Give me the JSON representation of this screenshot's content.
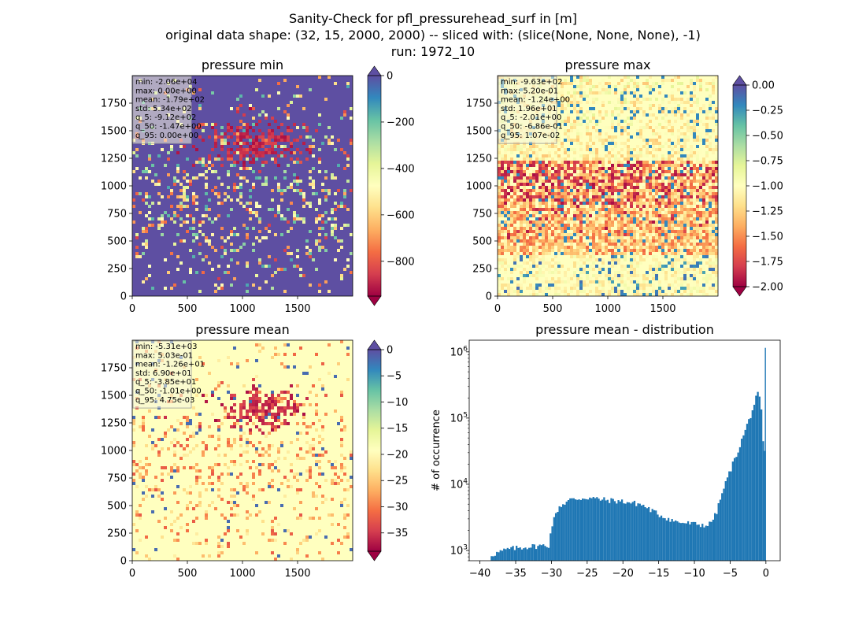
{
  "figure": {
    "title_lines": [
      "Sanity-Check for pfl_pressurehead_surf in [m]",
      "original data shape: (32, 15, 2000, 2000) -- sliced with: (slice(None, None, None), -1)",
      "run: 1972_10"
    ]
  },
  "colors": {
    "spectral_stops": [
      "#9e0142",
      "#d53e4f",
      "#f46d43",
      "#fdae61",
      "#fee08b",
      "#ffffbf",
      "#e6f598",
      "#abdda4",
      "#66c2a5",
      "#3288bd",
      "#5e4fa2"
    ],
    "hist_bar": "#1f77b4",
    "stats_box": "#f5f5dc"
  },
  "chart_data": [
    {
      "type": "heatmap",
      "title": "pressure min",
      "x_ticks": [
        "0",
        "500",
        "1000",
        "1500"
      ],
      "y_ticks": [
        "0",
        "250",
        "500",
        "750",
        "1000",
        "1250",
        "1500",
        "1750"
      ],
      "xlim": [
        0,
        2000
      ],
      "ylim": [
        0,
        2000
      ],
      "colorbar": {
        "vmin": -950,
        "vmax": 0,
        "ticks": [
          "0",
          "−200",
          "−400",
          "−600",
          "−800"
        ],
        "tick_values": [
          0,
          -200,
          -400,
          -600,
          -800
        ],
        "extend": "both"
      },
      "background_level": 1.0,
      "stats": [
        "min: -2.06e+04",
        "max: 0.00e+00",
        "mean: -1.79e+02",
        "std: 5.34e+02",
        "q_5: -9.12e+02",
        "q_50: -1.47e+00",
        "q_95: 0.00e+00"
      ]
    },
    {
      "type": "heatmap",
      "title": "pressure max",
      "x_ticks": [
        "0",
        "500",
        "1000",
        "1500"
      ],
      "y_ticks": [
        "0",
        "250",
        "500",
        "750",
        "1000",
        "1250",
        "1500",
        "1750"
      ],
      "xlim": [
        0,
        2000
      ],
      "ylim": [
        0,
        2000
      ],
      "colorbar": {
        "vmin": -2.0,
        "vmax": 0.0,
        "ticks": [
          "0.00",
          "−0.25",
          "−0.50",
          "−0.75",
          "−1.00",
          "−1.25",
          "−1.50",
          "−1.75",
          "−2.00"
        ],
        "tick_values": [
          0,
          -0.25,
          -0.5,
          -0.75,
          -1.0,
          -1.25,
          -1.5,
          -1.75,
          -2.0
        ],
        "extend": "both"
      },
      "background_level": 0.5,
      "stats": [
        "min: -9.63e+02",
        "max: 5.20e-01",
        "mean: -1.24e+00",
        "std: 1.96e+01",
        "q_5: -2.01e+00",
        "q_50: -6.86e-01",
        "q_95: 1.07e-02"
      ]
    },
    {
      "type": "heatmap",
      "title": "pressure mean",
      "x_ticks": [
        "0",
        "500",
        "1000",
        "1500"
      ],
      "y_ticks": [
        "0",
        "250",
        "500",
        "750",
        "1000",
        "1250",
        "1500",
        "1750"
      ],
      "xlim": [
        0,
        2000
      ],
      "ylim": [
        0,
        2000
      ],
      "colorbar": {
        "vmin": -38.5,
        "vmax": 0,
        "ticks": [
          "0",
          "−5",
          "−10",
          "−15",
          "−20",
          "−25",
          "−30",
          "−35"
        ],
        "tick_values": [
          0,
          -5,
          -10,
          -15,
          -20,
          -25,
          -30,
          -35
        ],
        "extend": "both"
      },
      "background_level": 0.5,
      "stats": [
        "min: -5.31e+03",
        "max: 5.03e-01",
        "mean: -1.26e+01",
        "std: 6.90e+01",
        "q_5: -3.85e+01",
        "q_50: -1.01e+00",
        "q_95: 4.75e-03"
      ]
    },
    {
      "type": "bar",
      "title": "pressure mean - distribution",
      "ylabel": "# of occurrence",
      "xlabel": "",
      "yscale": "log",
      "xlim": [
        -41.5,
        2.0
      ],
      "ylim": [
        700,
        1500000
      ],
      "x_ticks": [
        "−40",
        "−35",
        "−30",
        "−25",
        "−20",
        "−15",
        "−10",
        "−5",
        "0"
      ],
      "x_tick_values": [
        -40,
        -35,
        -30,
        -25,
        -20,
        -15,
        -10,
        -5,
        0
      ],
      "y_ticks": [
        "10^3",
        "10^4",
        "10^5",
        "10^6"
      ],
      "y_tick_values": [
        1000,
        10000,
        100000,
        1000000
      ],
      "bins": {
        "start": -38.5,
        "width": 0.25
      },
      "profile": [
        [
          -38.5,
          850
        ],
        [
          -36.0,
          1050
        ],
        [
          -33.0,
          1150
        ],
        [
          -30.3,
          1200
        ],
        [
          -30.0,
          2300
        ],
        [
          -29.0,
          4500
        ],
        [
          -27.5,
          5800
        ],
        [
          -25.0,
          6300
        ],
        [
          -22.5,
          5800
        ],
        [
          -20.0,
          5500
        ],
        [
          -17.5,
          5000
        ],
        [
          -15.0,
          3500
        ],
        [
          -12.5,
          2700
        ],
        [
          -10.0,
          2500
        ],
        [
          -8.0,
          2400
        ],
        [
          -7.0,
          3500
        ],
        [
          -6.0,
          8000
        ],
        [
          -5.0,
          16000
        ],
        [
          -4.0,
          30000
        ],
        [
          -3.0,
          60000
        ],
        [
          -2.0,
          120000
        ],
        [
          -1.3,
          210000
        ],
        [
          -1.0,
          240000
        ],
        [
          -0.6,
          120000
        ],
        [
          -0.3,
          30000
        ]
      ],
      "peak": {
        "x": 0.0,
        "value": 1150000
      }
    }
  ]
}
